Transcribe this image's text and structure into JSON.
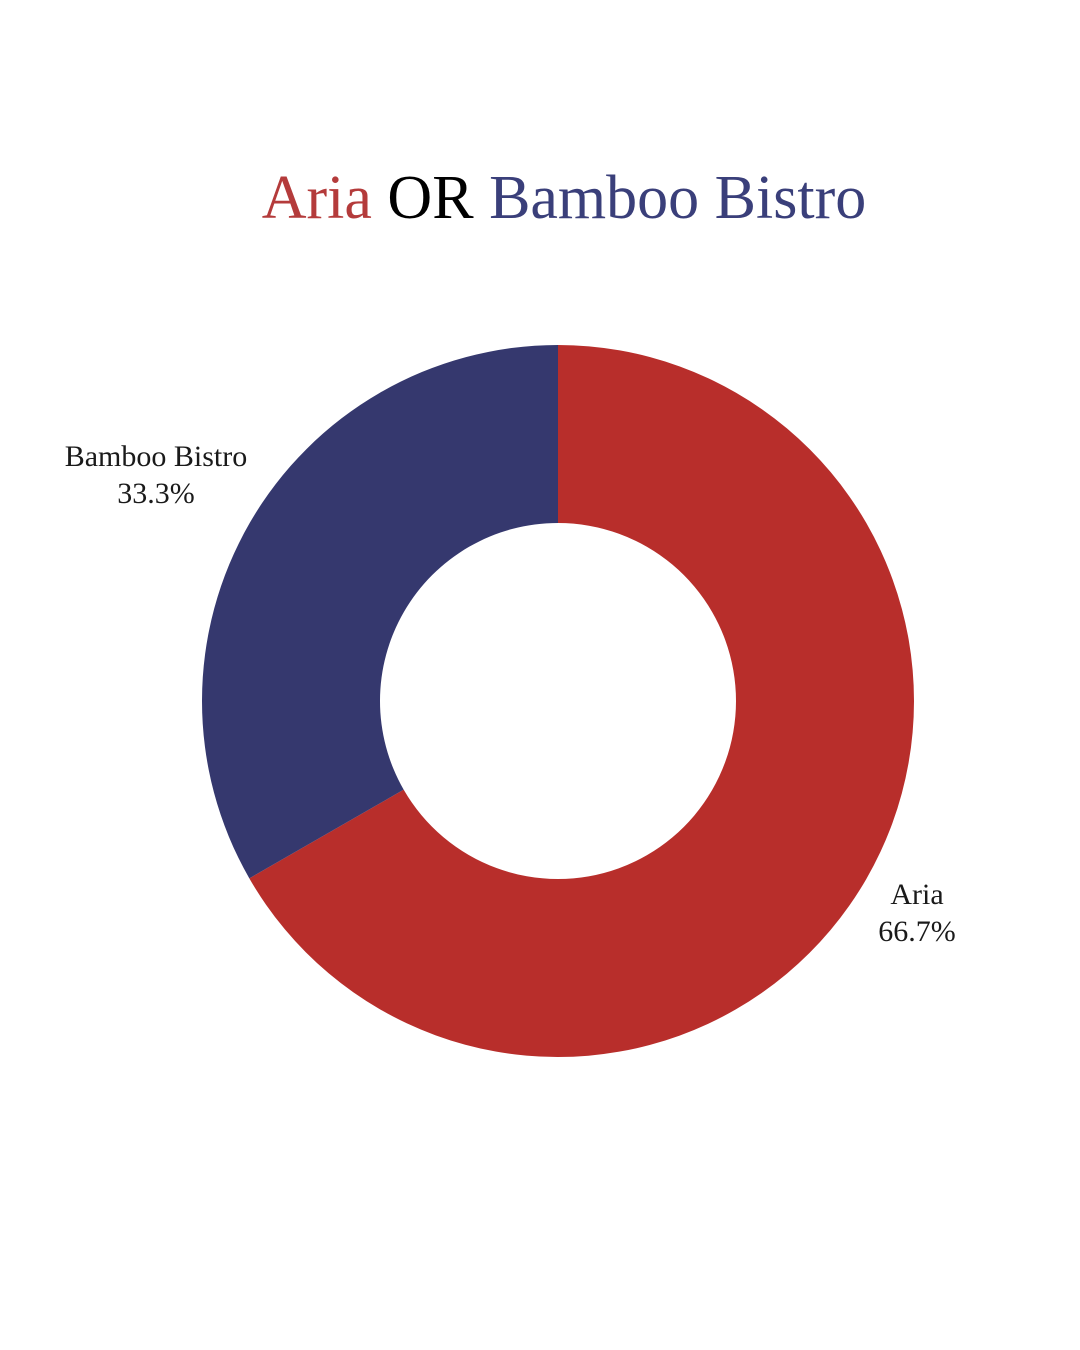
{
  "title": {
    "parts": [
      {
        "text": "Aria",
        "color": "#b43b3b"
      },
      {
        "text": " OR ",
        "color": "#000000"
      },
      {
        "text": "Bamboo Bistro",
        "color": "#3a3f7a"
      }
    ]
  },
  "chart_data": {
    "type": "pie",
    "donut": true,
    "inner_radius_ratio": 0.5,
    "start_angle_deg": 0,
    "direction": "clockwise",
    "title": "Aria OR Bamboo Bistro",
    "legend": "none",
    "label_color": "#1a1a1a",
    "slices": [
      {
        "label": "Aria",
        "value": 66.7,
        "percent_label": "66.7%",
        "color": "#b82e2b"
      },
      {
        "label": "Bamboo Bistro",
        "value": 33.3,
        "percent_label": "33.3%",
        "color": "#35386e"
      }
    ]
  }
}
